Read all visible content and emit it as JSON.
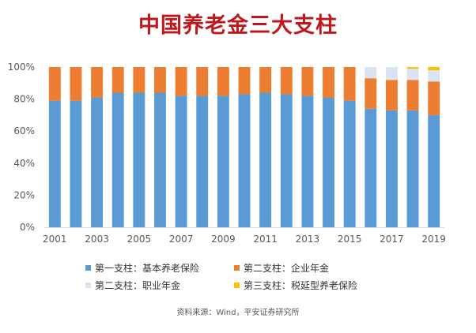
{
  "chart_data": {
    "type": "bar",
    "stacked": true,
    "title": "中国养老金三大支柱",
    "categories": [
      "2001",
      "2002",
      "2003",
      "2004",
      "2005",
      "2006",
      "2007",
      "2008",
      "2009",
      "2010",
      "2011",
      "2012",
      "2013",
      "2014",
      "2015",
      "2016",
      "2017",
      "2018",
      "2019"
    ],
    "x_tick_labels": [
      "2001",
      "2003",
      "2005",
      "2007",
      "2009",
      "2011",
      "2013",
      "2015",
      "2017",
      "2019"
    ],
    "y_ticks": [
      "0%",
      "20%",
      "40%",
      "60%",
      "80%",
      "100%"
    ],
    "ylim": [
      0,
      100
    ],
    "series": [
      {
        "name": "第一支柱：基本养老保险",
        "color": "#5b9bd5",
        "values": [
          79,
          79,
          81,
          84,
          84,
          84,
          82,
          82,
          82,
          83,
          84,
          83,
          82,
          81,
          79,
          74,
          73,
          73,
          70
        ]
      },
      {
        "name": "第二支柱：企业年金",
        "color": "#ed7d31",
        "values": [
          21,
          21,
          19,
          16,
          16,
          16,
          18,
          18,
          18,
          17,
          16,
          17,
          18,
          19,
          21,
          19,
          19,
          19,
          21
        ]
      },
      {
        "name": "第二支柱：职业年金",
        "color": "#dae3f3",
        "values": [
          0,
          0,
          0,
          0,
          0,
          0,
          0,
          0,
          0,
          0,
          0,
          0,
          0,
          0,
          0,
          7,
          8,
          7,
          7
        ]
      },
      {
        "name": "第三支柱：税延型养老保险",
        "color": "#ffc000",
        "values": [
          0,
          0,
          0,
          0,
          0,
          0,
          0,
          0,
          0,
          0,
          0,
          0,
          0,
          0,
          0,
          0,
          0,
          1,
          2
        ]
      }
    ],
    "legend": {
      "row1": [
        "第一支柱：基本养老保险",
        "第二支柱：企业年金"
      ],
      "row2": [
        "第二支柱：职业年金",
        "第三支柱：税延型养老保险"
      ]
    }
  },
  "source": "资料来源：Wind，平安证券研究所"
}
